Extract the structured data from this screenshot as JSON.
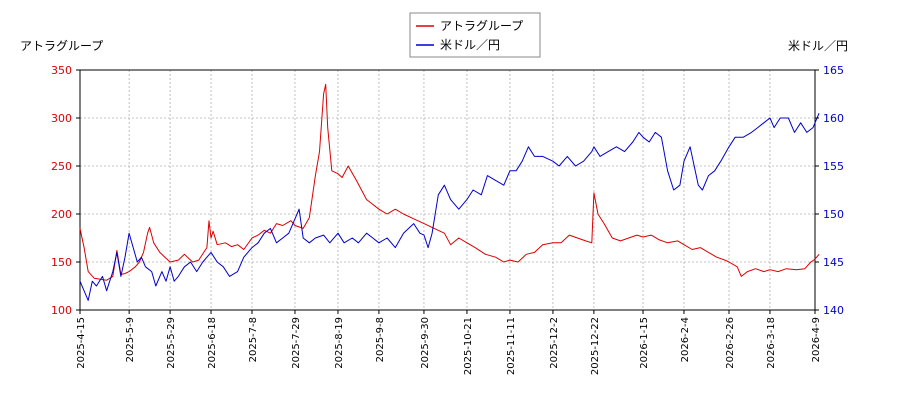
{
  "chart_data": {
    "type": "line",
    "left_axis_label": "アトラグループ",
    "right_axis_label": "米ドル／円",
    "legend": {
      "placement": "top-center",
      "items": [
        {
          "label": "アトラグループ",
          "color": "#dd0000"
        },
        {
          "label": "米ドル／円",
          "color": "#0000cc"
        }
      ]
    },
    "grid": true,
    "colors": {
      "red_axis": "#dd0000",
      "blue_axis": "#0000cc",
      "grid": "#b0b0b0"
    },
    "y_left": {
      "min": 100,
      "max": 350,
      "ticks": [
        100,
        150,
        200,
        250,
        300,
        350
      ]
    },
    "y_right": {
      "min": 140,
      "max": 165,
      "ticks": [
        140,
        145,
        150,
        155,
        160,
        165
      ]
    },
    "x_ticks": [
      "2025-4-15",
      "2025-5-9",
      "2025-5-29",
      "2025-6-18",
      "2025-7-8",
      "2025-7-29",
      "2025-8-19",
      "2025-9-8",
      "2025-9-30",
      "2025-10-21",
      "2025-11-11",
      "2025-12-2",
      "2025-12-22",
      "2026-1-15",
      "2026-2-4",
      "2026-2-26",
      "2026-3-18",
      "2026-4-9"
    ],
    "series": [
      {
        "name": "アトラグループ",
        "axis": "left",
        "color": "#dd0000",
        "points": [
          [
            "2025-4-15",
            185
          ],
          [
            "2025-4-17",
            165
          ],
          [
            "2025-4-19",
            140
          ],
          [
            "2025-4-22",
            133
          ],
          [
            "2025-4-25",
            132
          ],
          [
            "2025-4-28",
            131
          ],
          [
            "2025-5-1",
            135
          ],
          [
            "2025-5-3",
            162
          ],
          [
            "2025-5-5",
            137
          ],
          [
            "2025-5-7",
            138
          ],
          [
            "2025-5-9",
            140
          ],
          [
            "2025-5-12",
            145
          ],
          [
            "2025-5-14",
            150
          ],
          [
            "2025-5-16",
            160
          ],
          [
            "2025-5-18",
            180
          ],
          [
            "2025-5-19",
            186
          ],
          [
            "2025-5-21",
            170
          ],
          [
            "2025-5-24",
            160
          ],
          [
            "2025-5-27",
            154
          ],
          [
            "2025-5-29",
            150
          ],
          [
            "2025-6-2",
            152
          ],
          [
            "2025-6-5",
            158
          ],
          [
            "2025-6-9",
            150
          ],
          [
            "2025-6-12",
            152
          ],
          [
            "2025-6-16",
            165
          ],
          [
            "2025-6-17",
            193
          ],
          [
            "2025-6-18",
            175
          ],
          [
            "2025-6-19",
            182
          ],
          [
            "2025-6-21",
            168
          ],
          [
            "2025-6-25",
            170
          ],
          [
            "2025-6-28",
            166
          ],
          [
            "2025-7-1",
            168
          ],
          [
            "2025-7-4",
            163
          ],
          [
            "2025-7-8",
            175
          ],
          [
            "2025-7-11",
            178
          ],
          [
            "2025-7-14",
            183
          ],
          [
            "2025-7-17",
            180
          ],
          [
            "2025-7-20",
            190
          ],
          [
            "2025-7-23",
            188
          ],
          [
            "2025-7-27",
            193
          ],
          [
            "2025-7-29",
            188
          ],
          [
            "2025-8-2",
            185
          ],
          [
            "2025-8-5",
            196
          ],
          [
            "2025-8-8",
            240
          ],
          [
            "2025-8-10",
            265
          ],
          [
            "2025-8-12",
            325
          ],
          [
            "2025-8-13",
            335
          ],
          [
            "2025-8-14",
            290
          ],
          [
            "2025-8-16",
            245
          ],
          [
            "2025-8-19",
            242
          ],
          [
            "2025-8-21",
            238
          ],
          [
            "2025-8-24",
            250
          ],
          [
            "2025-8-28",
            235
          ],
          [
            "2025-9-2",
            215
          ],
          [
            "2025-9-5",
            210
          ],
          [
            "2025-9-8",
            205
          ],
          [
            "2025-9-12",
            200
          ],
          [
            "2025-9-16",
            205
          ],
          [
            "2025-9-20",
            200
          ],
          [
            "2025-9-25",
            195
          ],
          [
            "2025-9-30",
            190
          ],
          [
            "2025-10-5",
            185
          ],
          [
            "2025-10-10",
            180
          ],
          [
            "2025-10-13",
            168
          ],
          [
            "2025-10-17",
            175
          ],
          [
            "2025-10-21",
            170
          ],
          [
            "2025-10-25",
            165
          ],
          [
            "2025-10-30",
            158
          ],
          [
            "2025-11-4",
            155
          ],
          [
            "2025-11-8",
            150
          ],
          [
            "2025-11-11",
            152
          ],
          [
            "2025-11-15",
            150
          ],
          [
            "2025-11-19",
            158
          ],
          [
            "2025-11-23",
            160
          ],
          [
            "2025-11-27",
            168
          ],
          [
            "2025-12-2",
            170
          ],
          [
            "2025-12-6",
            170
          ],
          [
            "2025-12-10",
            178
          ],
          [
            "2025-12-14",
            175
          ],
          [
            "2025-12-18",
            172
          ],
          [
            "2025-12-21",
            170
          ],
          [
            "2025-12-22",
            222
          ],
          [
            "2025-12-24",
            200
          ],
          [
            "2025-12-27",
            190
          ],
          [
            "2025-12-31",
            175
          ],
          [
            "2026-1-4",
            172
          ],
          [
            "2026-1-8",
            175
          ],
          [
            "2026-1-12",
            178
          ],
          [
            "2026-1-15",
            176
          ],
          [
            "2026-1-19",
            178
          ],
          [
            "2026-1-23",
            173
          ],
          [
            "2026-1-27",
            170
          ],
          [
            "2026-2-1",
            172
          ],
          [
            "2026-2-4",
            168
          ],
          [
            "2026-2-8",
            163
          ],
          [
            "2026-2-12",
            165
          ],
          [
            "2026-2-16",
            160
          ],
          [
            "2026-2-20",
            155
          ],
          [
            "2026-2-24",
            152
          ],
          [
            "2026-2-26",
            150
          ],
          [
            "2026-3-2",
            145
          ],
          [
            "2026-3-4",
            135
          ],
          [
            "2026-3-7",
            140
          ],
          [
            "2026-3-11",
            143
          ],
          [
            "2026-3-15",
            140
          ],
          [
            "2026-3-18",
            142
          ],
          [
            "2026-3-22",
            140
          ],
          [
            "2026-3-26",
            143
          ],
          [
            "2026-3-31",
            142
          ],
          [
            "2026-4-4",
            143
          ],
          [
            "2026-4-7",
            150
          ],
          [
            "2026-4-9",
            153
          ],
          [
            "2026-4-11",
            158
          ]
        ]
      },
      {
        "name": "米ドル／円",
        "axis": "right",
        "color": "#0000cc",
        "points": [
          [
            "2025-4-15",
            143
          ],
          [
            "2025-4-17",
            142
          ],
          [
            "2025-4-19",
            141
          ],
          [
            "2025-4-21",
            143
          ],
          [
            "2025-4-23",
            142.5
          ],
          [
            "2025-4-26",
            143.5
          ],
          [
            "2025-4-28",
            142
          ],
          [
            "2025-5-1",
            144
          ],
          [
            "2025-5-3",
            146
          ],
          [
            "2025-5-5",
            143.5
          ],
          [
            "2025-5-7",
            145.5
          ],
          [
            "2025-5-9",
            148
          ],
          [
            "2025-5-11",
            146.5
          ],
          [
            "2025-5-13",
            145
          ],
          [
            "2025-5-15",
            145.5
          ],
          [
            "2025-5-17",
            144.5
          ],
          [
            "2025-5-20",
            144
          ],
          [
            "2025-5-22",
            142.5
          ],
          [
            "2025-5-25",
            144
          ],
          [
            "2025-5-27",
            143
          ],
          [
            "2025-5-29",
            144.5
          ],
          [
            "2025-5-31",
            143
          ],
          [
            "2025-6-2",
            143.5
          ],
          [
            "2025-6-5",
            144.5
          ],
          [
            "2025-6-8",
            145
          ],
          [
            "2025-6-11",
            144
          ],
          [
            "2025-6-14",
            145
          ],
          [
            "2025-6-16",
            145.5
          ],
          [
            "2025-6-18",
            146
          ],
          [
            "2025-6-21",
            145
          ],
          [
            "2025-6-24",
            144.5
          ],
          [
            "2025-6-27",
            143.5
          ],
          [
            "2025-7-1",
            144
          ],
          [
            "2025-7-4",
            145.5
          ],
          [
            "2025-7-8",
            146.5
          ],
          [
            "2025-7-11",
            147
          ],
          [
            "2025-7-14",
            148
          ],
          [
            "2025-7-17",
            148.5
          ],
          [
            "2025-7-20",
            147
          ],
          [
            "2025-7-23",
            147.5
          ],
          [
            "2025-7-26",
            148
          ],
          [
            "2025-7-29",
            149.5
          ],
          [
            "2025-7-31",
            150.5
          ],
          [
            "2025-8-2",
            147.5
          ],
          [
            "2025-8-5",
            147
          ],
          [
            "2025-8-8",
            147.5
          ],
          [
            "2025-8-12",
            147.8
          ],
          [
            "2025-8-15",
            147
          ],
          [
            "2025-8-19",
            148
          ],
          [
            "2025-8-22",
            147
          ],
          [
            "2025-8-26",
            147.5
          ],
          [
            "2025-8-29",
            147
          ],
          [
            "2025-9-2",
            148
          ],
          [
            "2025-9-5",
            147.5
          ],
          [
            "2025-9-8",
            147
          ],
          [
            "2025-9-12",
            147.5
          ],
          [
            "2025-9-16",
            146.5
          ],
          [
            "2025-9-20",
            148
          ],
          [
            "2025-9-25",
            149
          ],
          [
            "2025-9-28",
            148
          ],
          [
            "2025-9-30",
            147.8
          ],
          [
            "2025-10-2",
            146.5
          ],
          [
            "2025-10-4",
            148
          ],
          [
            "2025-10-7",
            152
          ],
          [
            "2025-10-10",
            153
          ],
          [
            "2025-10-13",
            151.5
          ],
          [
            "2025-10-17",
            150.5
          ],
          [
            "2025-10-21",
            151.5
          ],
          [
            "2025-10-24",
            152.5
          ],
          [
            "2025-10-28",
            152
          ],
          [
            "2025-10-31",
            154
          ],
          [
            "2025-11-4",
            153.5
          ],
          [
            "2025-11-8",
            153
          ],
          [
            "2025-11-11",
            154.5
          ],
          [
            "2025-11-14",
            154.5
          ],
          [
            "2025-11-17",
            155.5
          ],
          [
            "2025-11-20",
            157
          ],
          [
            "2025-11-23",
            156
          ],
          [
            "2025-11-27",
            156
          ],
          [
            "2025-12-2",
            155.5
          ],
          [
            "2025-12-5",
            155
          ],
          [
            "2025-12-9",
            156
          ],
          [
            "2025-12-13",
            155
          ],
          [
            "2025-12-17",
            155.5
          ],
          [
            "2025-12-21",
            156.5
          ],
          [
            "2025-12-22",
            157
          ],
          [
            "2025-12-25",
            156
          ],
          [
            "2025-12-29",
            156.5
          ],
          [
            "2026-1-2",
            157
          ],
          [
            "2026-1-6",
            156.5
          ],
          [
            "2026-1-10",
            157.5
          ],
          [
            "2026-1-13",
            158.5
          ],
          [
            "2026-1-15",
            158
          ],
          [
            "2026-1-18",
            157.5
          ],
          [
            "2026-1-21",
            158.5
          ],
          [
            "2026-1-24",
            158
          ],
          [
            "2026-1-27",
            154.5
          ],
          [
            "2026-1-30",
            152.5
          ],
          [
            "2026-2-2",
            153
          ],
          [
            "2026-2-4",
            155.5
          ],
          [
            "2026-2-7",
            157
          ],
          [
            "2026-2-9",
            155
          ],
          [
            "2026-2-11",
            153
          ],
          [
            "2026-2-13",
            152.5
          ],
          [
            "2026-2-16",
            154
          ],
          [
            "2026-2-19",
            154.5
          ],
          [
            "2026-2-22",
            155.5
          ],
          [
            "2026-2-26",
            157
          ],
          [
            "2026-3-1",
            158
          ],
          [
            "2026-3-5",
            158
          ],
          [
            "2026-3-9",
            158.5
          ],
          [
            "2026-3-12",
            159
          ],
          [
            "2026-3-15",
            159.5
          ],
          [
            "2026-3-18",
            160
          ],
          [
            "2026-3-20",
            159
          ],
          [
            "2026-3-23",
            160
          ],
          [
            "2026-3-27",
            160
          ],
          [
            "2026-3-30",
            158.5
          ],
          [
            "2026-4-2",
            159.5
          ],
          [
            "2026-4-5",
            158.5
          ],
          [
            "2026-4-8",
            159
          ],
          [
            "2026-4-11",
            160.5
          ]
        ]
      }
    ]
  }
}
